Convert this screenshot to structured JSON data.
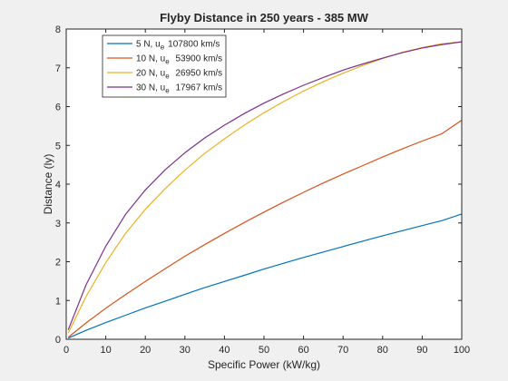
{
  "chart_data": {
    "type": "line",
    "title": "Flyby Distance in 250 years - 385 MW",
    "xlabel": "Specific Power (kW/kg)",
    "ylabel": "Distance (ly)",
    "xlim": [
      0,
      100
    ],
    "ylim": [
      0,
      8
    ],
    "xticks": [
      0,
      10,
      20,
      30,
      40,
      50,
      60,
      70,
      80,
      90,
      100
    ],
    "yticks": [
      0,
      1,
      2,
      3,
      4,
      5,
      6,
      7,
      8
    ],
    "grid": false,
    "legend_position": "top-left",
    "x": [
      0.5,
      5,
      10,
      15,
      20,
      25,
      30,
      35,
      40,
      45,
      50,
      55,
      60,
      65,
      70,
      75,
      80,
      85,
      90,
      95,
      100
    ],
    "series": [
      {
        "label": "5 N, u",
        "subscript": "e",
        "speed": "107800 km/s",
        "color": "#0072BD",
        "values": [
          0.03,
          0.23,
          0.43,
          0.62,
          0.81,
          0.98,
          1.16,
          1.33,
          1.49,
          1.65,
          1.81,
          1.96,
          2.11,
          2.25,
          2.39,
          2.53,
          2.67,
          2.8,
          2.93,
          3.06,
          3.23
        ]
      },
      {
        "label": "10 N, u",
        "subscript": "e",
        "speed": " 53900 km/s",
        "color": "#D95319",
        "values": [
          0.05,
          0.42,
          0.8,
          1.15,
          1.49,
          1.82,
          2.14,
          2.44,
          2.73,
          3.01,
          3.28,
          3.54,
          3.79,
          4.03,
          4.26,
          4.48,
          4.7,
          4.91,
          5.11,
          5.3,
          5.65
        ]
      },
      {
        "label": "20 N, u",
        "subscript": "e",
        "speed": " 26950 km/s",
        "color": "#EDB120",
        "values": [
          0.16,
          1.1,
          1.98,
          2.73,
          3.35,
          3.88,
          4.36,
          4.79,
          5.17,
          5.52,
          5.84,
          6.13,
          6.4,
          6.64,
          6.86,
          7.06,
          7.24,
          7.4,
          7.52,
          7.62,
          7.67
        ]
      },
      {
        "label": "30 N, u",
        "subscript": "e",
        "speed": " 17967 km/s",
        "color": "#7E2F8E",
        "values": [
          0.24,
          1.4,
          2.4,
          3.22,
          3.85,
          4.37,
          4.81,
          5.19,
          5.52,
          5.82,
          6.09,
          6.33,
          6.55,
          6.75,
          6.94,
          7.1,
          7.25,
          7.39,
          7.51,
          7.6,
          7.67
        ]
      }
    ]
  }
}
